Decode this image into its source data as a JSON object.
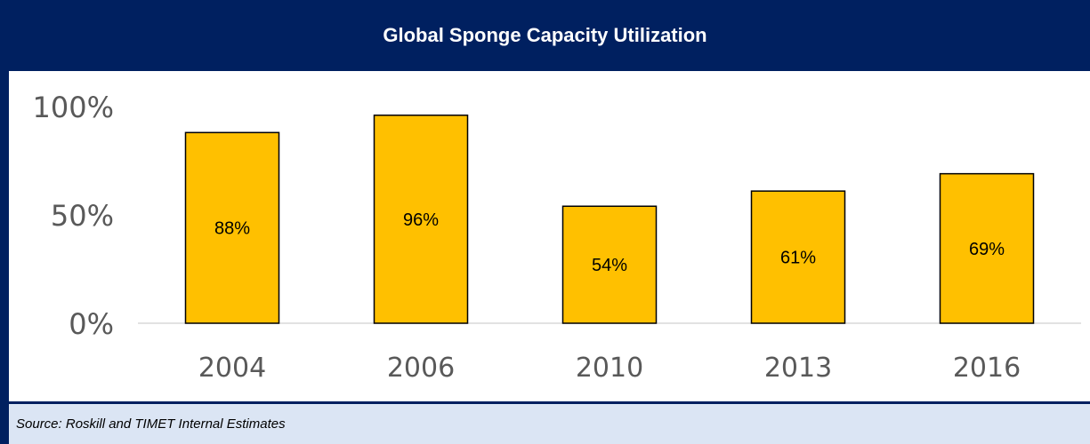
{
  "chart_data": {
    "type": "bar",
    "title": "Global Sponge Capacity Utilization",
    "categories": [
      "2004",
      "2006",
      "2010",
      "2013",
      "2016"
    ],
    "values": [
      88,
      96,
      54,
      61,
      69
    ],
    "data_labels": [
      "88%",
      "96%",
      "54%",
      "61%",
      "69%"
    ],
    "ylim": [
      0,
      100
    ],
    "yticks": [
      0,
      50,
      100
    ],
    "ytick_labels": [
      "0%",
      "50%",
      "100%"
    ],
    "xlabel": "",
    "ylabel": "",
    "grid": false,
    "legend": "none",
    "colors": {
      "bar_fill": "#ffc000",
      "bar_stroke": "#000000",
      "title_background": "#002060",
      "source_background": "#dbe5f4"
    }
  },
  "source": "Source: Roskill and TIMET Internal Estimates"
}
